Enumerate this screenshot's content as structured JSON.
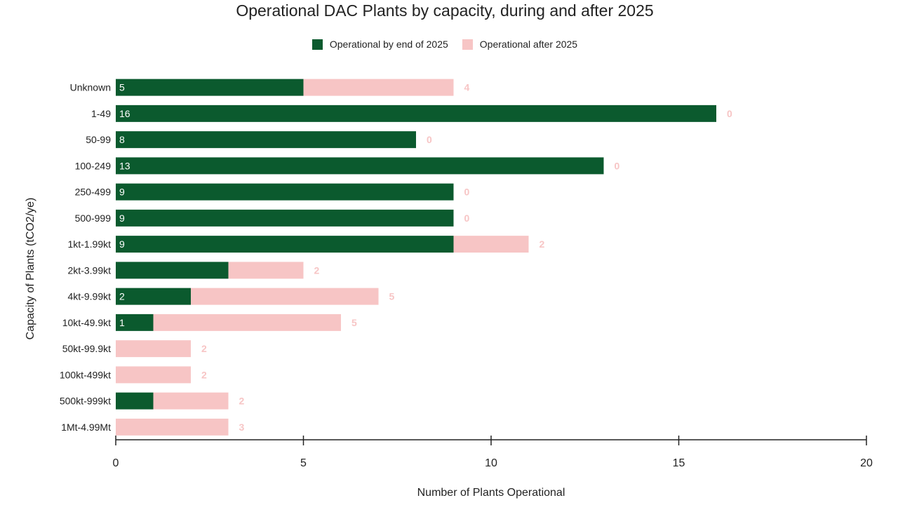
{
  "chart_data": {
    "type": "bar",
    "orientation": "horizontal",
    "stacked": true,
    "title": "Operational DAC Plants by capacity, during and after 2025",
    "xlabel": "Number of Plants Operational",
    "ylabel": "Capacity of Plants (tCO2/ye)",
    "xlim": [
      0,
      20
    ],
    "xticks": [
      "0",
      "5",
      "10",
      "15",
      "20"
    ],
    "grid": false,
    "legend_position": "top",
    "categories": [
      "Unknown",
      "1-49",
      "50-99",
      "100-249",
      "250-499",
      "500-999",
      "1kt-1.99kt",
      "2kt-3.99kt",
      "4kt-9.99kt",
      "10kt-49.9kt",
      "50kt-99.9kt",
      "100kt-499kt",
      "500kt-999kt",
      "1Mt-4.99Mt"
    ],
    "series": [
      {
        "name": "Operational by end of 2025",
        "color": "#0b5a2e",
        "values": [
          5,
          16,
          8,
          13,
          9,
          9,
          9,
          3,
          2,
          1,
          0,
          0,
          1,
          0
        ],
        "labels": [
          "5",
          "16",
          "8",
          "13",
          "9",
          "9",
          "9",
          "",
          "2",
          "1",
          "",
          "",
          "",
          ""
        ]
      },
      {
        "name": "Operational after 2025",
        "color": "#f7c5c5",
        "values": [
          4,
          0,
          0,
          0,
          0,
          0,
          2,
          2,
          5,
          5,
          2,
          2,
          2,
          3
        ],
        "labels": [
          "4",
          "0",
          "0",
          "0",
          "0",
          "0",
          "2",
          "2",
          "5",
          "5",
          "2",
          "2",
          "2",
          "3"
        ]
      }
    ]
  }
}
